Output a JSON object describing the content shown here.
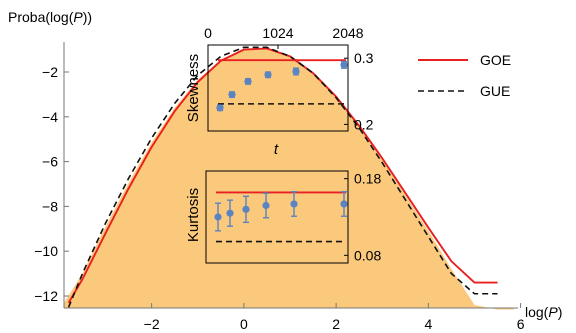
{
  "chart_data": [
    {
      "type": "area",
      "xlabel_prefix": "log(",
      "xlabel_var": "P",
      "xlabel_suffix": ")",
      "ylabel_prefix": "Proba(log(",
      "ylabel_var": "P",
      "ylabel_suffix": "))",
      "xlim": [
        -3.9,
        5.9
      ],
      "ylim": [
        -12.6,
        -0.5
      ],
      "xticks": [
        -2,
        0,
        2,
        4,
        6
      ],
      "yticks": [
        -12,
        -10,
        -8,
        -6,
        -4,
        -2
      ],
      "grid": false,
      "legend_position": "top-right",
      "histogram": {
        "color": "#fbc97c",
        "x": [
          -3.9,
          -3.5,
          -3.0,
          -2.5,
          -2.0,
          -1.5,
          -1.0,
          -0.5,
          0.0,
          0.5,
          1.0,
          1.5,
          2.0,
          2.5,
          3.0,
          3.5,
          4.0,
          4.5,
          5.0,
          5.5,
          5.85
        ],
        "y": [
          -12.3,
          -11.0,
          -8.9,
          -6.95,
          -5.15,
          -3.6,
          -2.35,
          -1.45,
          -1.0,
          -0.95,
          -1.35,
          -2.1,
          -3.15,
          -4.45,
          -5.9,
          -7.5,
          -9.1,
          -10.8,
          -12.4,
          -12.6,
          -12.6
        ]
      },
      "series": [
        {
          "name": "GOE",
          "color": "#e8201f",
          "dash": "solid",
          "x": [
            -3.8,
            -3.5,
            -3.0,
            -2.5,
            -2.0,
            -1.5,
            -1.0,
            -0.5,
            0.0,
            0.5,
            1.0,
            1.5,
            2.0,
            2.5,
            3.0,
            3.5,
            4.0,
            4.5,
            5.0,
            5.5
          ],
          "y": [
            -12.3,
            -11.25,
            -9.2,
            -7.2,
            -5.35,
            -3.75,
            -2.45,
            -1.5,
            -1.0,
            -0.95,
            -1.3,
            -2.05,
            -3.1,
            -4.4,
            -5.85,
            -7.4,
            -8.95,
            -10.45,
            -11.4,
            -11.4
          ]
        },
        {
          "name": "GUE",
          "color": "#111111",
          "dash": "dashed",
          "x": [
            -3.8,
            -3.5,
            -3.0,
            -2.5,
            -2.0,
            -1.5,
            -1.0,
            -0.5,
            0.0,
            0.5,
            1.0,
            1.5,
            2.0,
            2.5,
            3.0,
            3.5,
            4.0,
            4.5,
            5.0,
            5.5
          ],
          "y": [
            -12.5,
            -11.0,
            -8.75,
            -6.75,
            -4.95,
            -3.4,
            -2.15,
            -1.3,
            -0.9,
            -0.9,
            -1.3,
            -2.05,
            -3.15,
            -4.5,
            -6.05,
            -7.7,
            -9.35,
            -11.0,
            -11.9,
            -11.9
          ]
        }
      ]
    },
    {
      "type": "scatter",
      "ylabel": "Skewness",
      "xlabel": "t",
      "xlim": [
        0,
        2048
      ],
      "ylim": [
        0.19,
        0.32
      ],
      "xticks": [
        0,
        1024,
        2048
      ],
      "yticks": [
        0.2,
        0.3
      ],
      "ytick_labels": [
        "0.2",
        "0.3"
      ],
      "points": [
        {
          "x": 64,
          "y": 0.225,
          "err": 0.004
        },
        {
          "x": 128,
          "y": 0.245,
          "err": 0.004
        },
        {
          "x": 256,
          "y": 0.265,
          "err": 0.004
        },
        {
          "x": 512,
          "y": 0.275,
          "err": 0.004
        },
        {
          "x": 1024,
          "y": 0.28,
          "err": 0.005
        },
        {
          "x": 2048,
          "y": 0.29,
          "err": 0.005
        }
      ],
      "lines": [
        {
          "name": "GOE",
          "y": 0.297,
          "color": "#e8201f",
          "dash": "solid"
        },
        {
          "name": "GUE",
          "y": 0.231,
          "color": "#111111",
          "dash": "dashed"
        }
      ]
    },
    {
      "type": "scatter",
      "ylabel": "Kurtosis",
      "xlim": [
        0,
        2048
      ],
      "ylim": [
        0.07,
        0.19
      ],
      "yticks": [
        0.08,
        0.18
      ],
      "ytick_labels": [
        "0.08",
        "0.18"
      ],
      "points": [
        {
          "x": 64,
          "y": 0.13,
          "err": 0.018
        },
        {
          "x": 128,
          "y": 0.135,
          "err": 0.017
        },
        {
          "x": 256,
          "y": 0.14,
          "err": 0.017
        },
        {
          "x": 512,
          "y": 0.145,
          "err": 0.016
        },
        {
          "x": 1024,
          "y": 0.147,
          "err": 0.016
        },
        {
          "x": 2048,
          "y": 0.147,
          "err": 0.016
        }
      ],
      "lines": [
        {
          "name": "GOE",
          "y": 0.162,
          "color": "#e8201f",
          "dash": "solid"
        },
        {
          "name": "GUE",
          "y": 0.098,
          "color": "#111111",
          "dash": "dashed"
        }
      ]
    }
  ]
}
